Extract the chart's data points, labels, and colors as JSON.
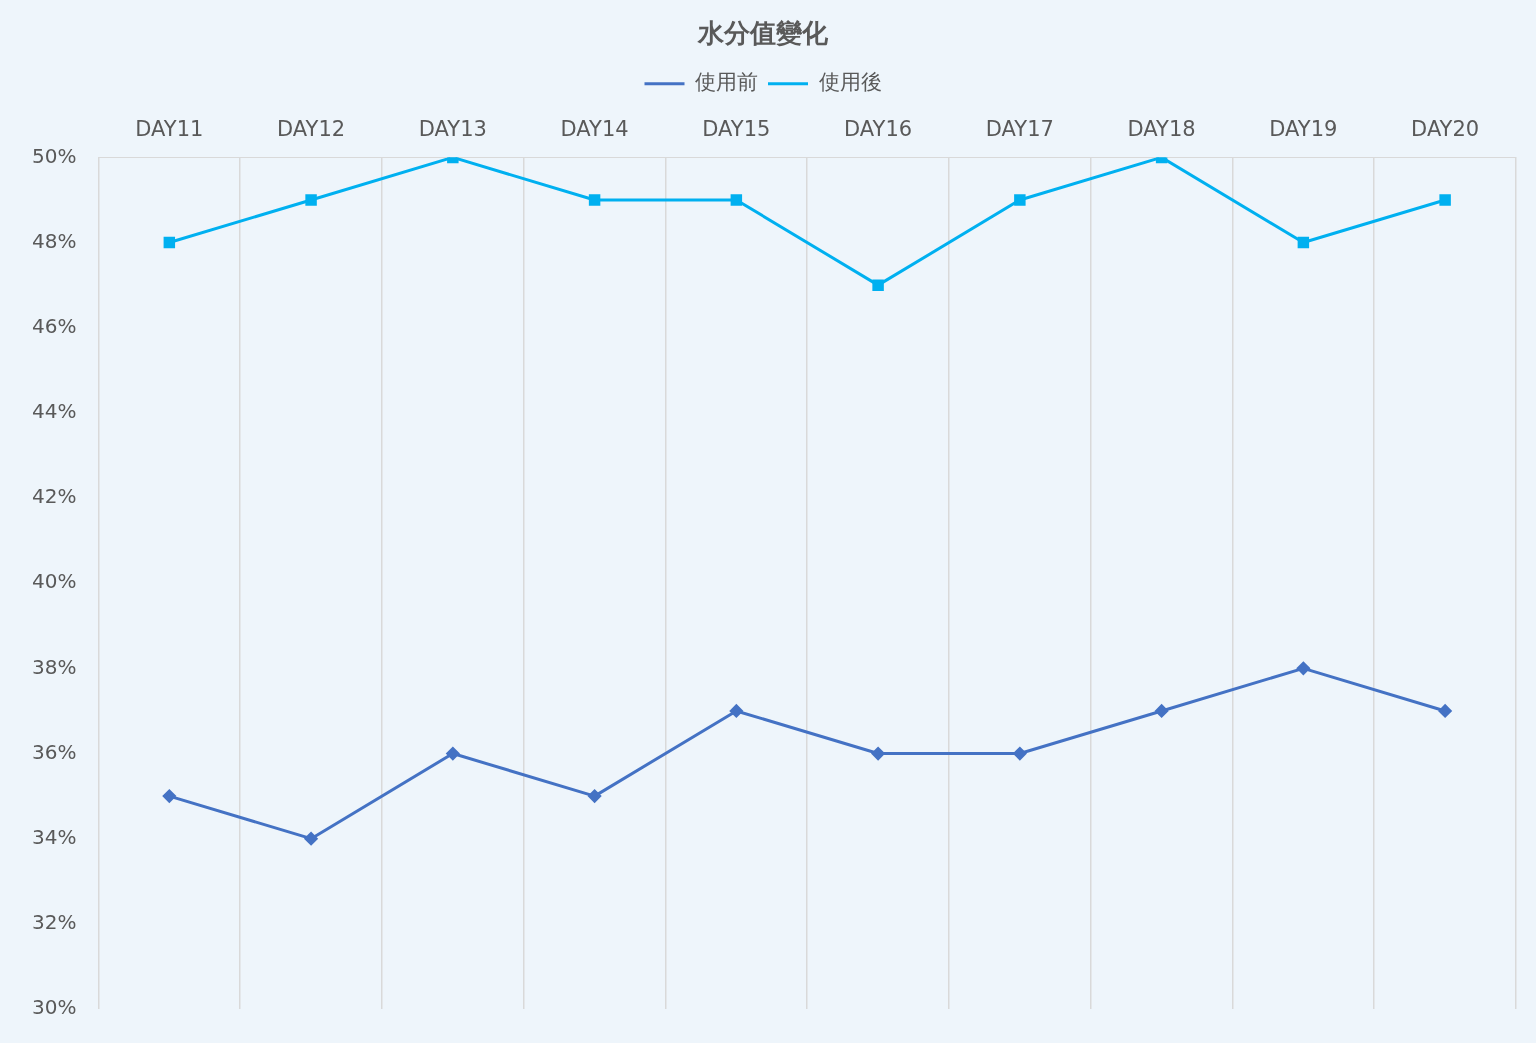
{
  "chart_data": {
    "type": "line",
    "title": "水分值變化",
    "categories": [
      "DAY11",
      "DAY12",
      "DAY13",
      "DAY14",
      "DAY15",
      "DAY16",
      "DAY17",
      "DAY18",
      "DAY19",
      "DAY20"
    ],
    "series": [
      {
        "name": "使用前",
        "color": "#4472c4",
        "marker": "diamond",
        "values": [
          35,
          34,
          36,
          35,
          37,
          36,
          36,
          37,
          38,
          37
        ]
      },
      {
        "name": "使用後",
        "color": "#00b0f0",
        "marker": "square",
        "values": [
          48,
          49,
          50,
          49,
          49,
          47,
          49,
          50,
          48,
          49
        ]
      }
    ],
    "ylim": [
      30,
      50
    ],
    "yticks": [
      {
        "value": 30,
        "label": "30%"
      },
      {
        "value": 32,
        "label": "32%"
      },
      {
        "value": 34,
        "label": "34%"
      },
      {
        "value": 36,
        "label": "36%"
      },
      {
        "value": 38,
        "label": "38%"
      },
      {
        "value": 40,
        "label": "40%"
      },
      {
        "value": 42,
        "label": "42%"
      },
      {
        "value": 44,
        "label": "44%"
      },
      {
        "value": 46,
        "label": "46%"
      },
      {
        "value": 48,
        "label": "48%"
      },
      {
        "value": 50,
        "label": "50%"
      }
    ],
    "grid": "x",
    "legend": "top"
  }
}
